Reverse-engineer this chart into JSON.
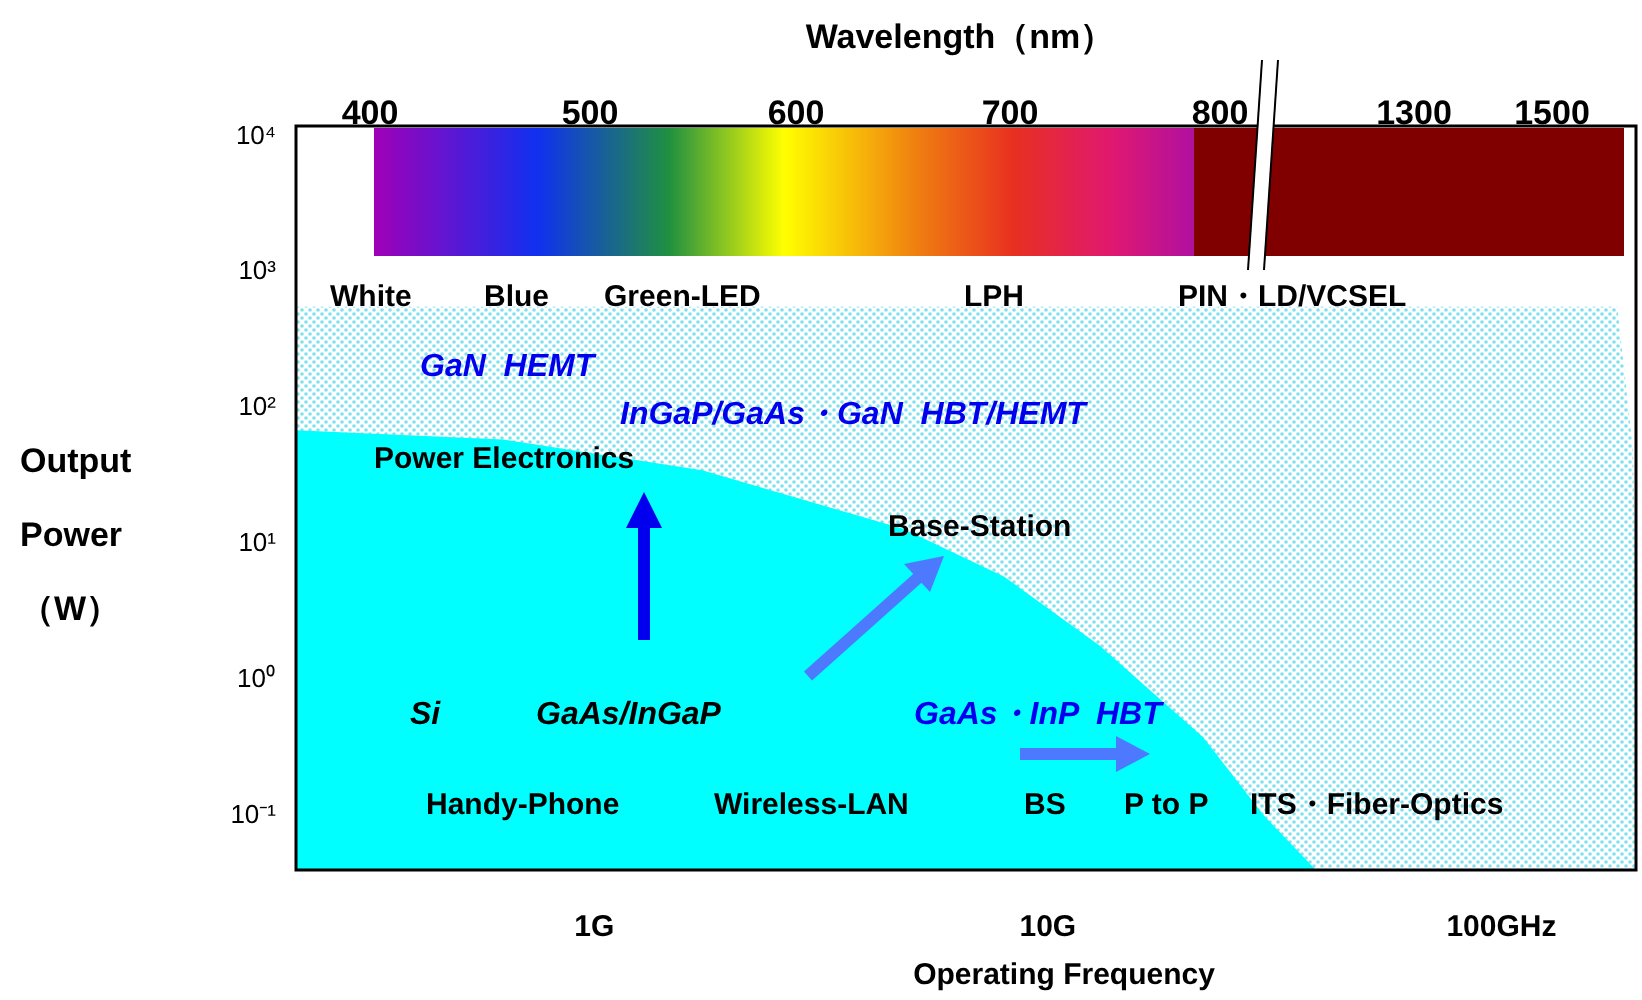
{
  "chart_data": {
    "type": "area",
    "xlabel": "Operating Frequency",
    "ylabel": "Output Power （W）",
    "log": "xy",
    "grid": false,
    "xlim": [
      0.22,
      198
    ],
    "xticks": [
      {
        "value": 1,
        "label": "1G"
      },
      {
        "value": 10,
        "label": "10G"
      },
      {
        "value": 100,
        "label": "100GHz"
      }
    ],
    "ylim": [
      0.04,
      12000
    ],
    "yticks": [
      {
        "value": 0.1,
        "label": "10⁻¹"
      },
      {
        "value": 1,
        "label": "10⁰"
      },
      {
        "value": 10,
        "label": "10¹"
      },
      {
        "value": 100,
        "label": "10²"
      },
      {
        "value": 1000,
        "label": "10³"
      },
      {
        "value": 10000,
        "label": "10⁴"
      }
    ],
    "series": [
      {
        "color": "#bff3f7",
        "x": [
          0.22,
          180,
          195,
          198
        ],
        "values": [
          560,
          560,
          50,
          5
        ]
      },
      {
        "color": "#00ffff",
        "x": [
          0.22,
          0.63,
          1.73,
          4.8,
          8,
          13,
          22,
          30,
          39
        ],
        "values": [
          69,
          59,
          35,
          13,
          5.8,
          1.8,
          0.38,
          0.1,
          0.04
        ]
      }
    ],
    "annotations": [
      "Wavelength（nm）",
      "400",
      "500",
      "600",
      "700",
      "800",
      "1300",
      "1500",
      "White",
      "Blue",
      "Green-LED",
      "LPH",
      "PIN・LD/VCSEL",
      "GaN  HEMT",
      "InGaP/GaAs・GaN  HBT/HEMT",
      "Power Electronics",
      "Base-Station",
      "Si",
      "GaAs/InGaP",
      "GaAs・InP  HBT",
      "Handy-Phone",
      "Wireless-LAN",
      "BS",
      "P to P",
      "ITS・Fiber-Optics"
    ]
  }
}
